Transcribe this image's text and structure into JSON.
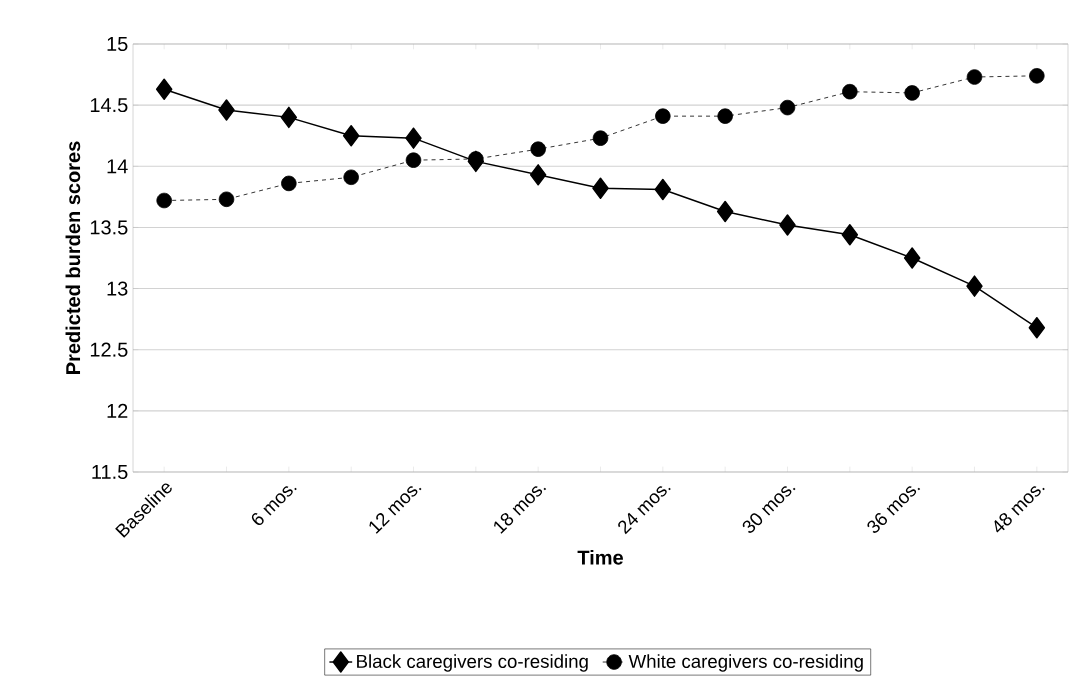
{
  "chart_data": {
    "type": "line",
    "xlabel": "Time",
    "ylabel": "Predicted burden scores",
    "categories": [
      "Baseline",
      null,
      "6 mos.",
      null,
      "12 mos.",
      null,
      "18 mos.",
      null,
      "24 mos.",
      null,
      "30 mos.",
      null,
      "36 mos.",
      null,
      "48 mos."
    ],
    "series": [
      {
        "name": "Black caregivers co-residing",
        "color": "#000000",
        "marker": "diamond",
        "line_style": "solid",
        "values": [
          14.63,
          14.46,
          14.4,
          14.25,
          14.23,
          14.04,
          13.93,
          13.82,
          13.81,
          13.63,
          13.52,
          13.44,
          13.25,
          13.02,
          12.68
        ]
      },
      {
        "name": "White caregivers co-residing",
        "color": "#000000",
        "marker": "circle",
        "line_style": "dashed",
        "values": [
          13.72,
          13.73,
          13.86,
          13.91,
          14.05,
          14.06,
          14.14,
          14.23,
          14.41,
          14.41,
          14.48,
          14.61,
          14.6,
          14.73,
          14.74
        ]
      }
    ],
    "ylim": [
      11.5,
      15
    ],
    "yticks": [
      11.5,
      12,
      12.5,
      13,
      13.5,
      14,
      14.5,
      15
    ],
    "grid": "y",
    "legend": "bottom"
  }
}
